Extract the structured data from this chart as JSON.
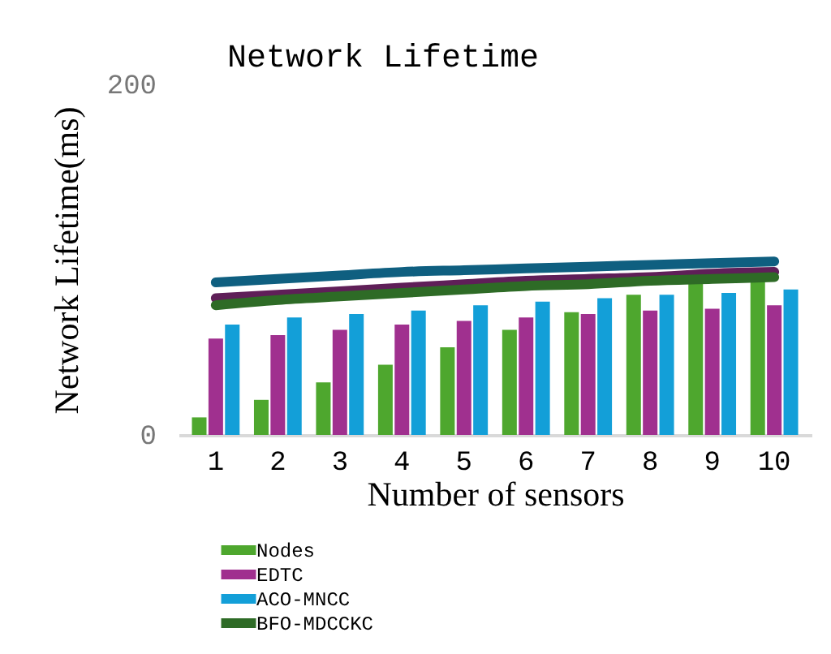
{
  "chart_data": {
    "type": "bar",
    "title": "Network Lifetime",
    "xlabel": "Number of sensors",
    "ylabel": "Network Lifetime(ms)",
    "categories": [
      "1",
      "2",
      "3",
      "4",
      "5",
      "6",
      "7",
      "8",
      "9",
      "10"
    ],
    "series": [
      {
        "name": "Nodes",
        "color": "#4ea72e",
        "values": [
          10,
          20,
          30,
          40,
          50,
          60,
          70,
          80,
          90,
          92
        ]
      },
      {
        "name": "EDTC",
        "color": "#a0308f",
        "values": [
          55,
          57,
          60,
          63,
          65,
          67,
          69,
          71,
          72,
          74
        ]
      },
      {
        "name": "ACO-MNCC",
        "color": "#139fd8",
        "values": [
          63,
          67,
          69,
          71,
          74,
          76,
          78,
          80,
          81,
          83
        ]
      },
      {
        "type": "line",
        "color": "#0f5f80",
        "values": [
          87,
          89,
          91,
          93,
          94,
          95,
          96,
          97,
          98,
          99
        ]
      },
      {
        "type": "line",
        "color": "#5f1f58",
        "values": [
          78,
          80,
          82,
          84,
          86,
          88,
          89,
          90,
          92,
          93
        ]
      },
      {
        "name": "BFO-MDCCKC",
        "type": "line",
        "color": "#2e6b26",
        "values": [
          74,
          77,
          79,
          81,
          83,
          85,
          86,
          88,
          89,
          90
        ]
      }
    ],
    "ylim": [
      0,
      200
    ],
    "yticks": [
      0,
      200
    ],
    "grid": false,
    "legend": "bottom"
  }
}
